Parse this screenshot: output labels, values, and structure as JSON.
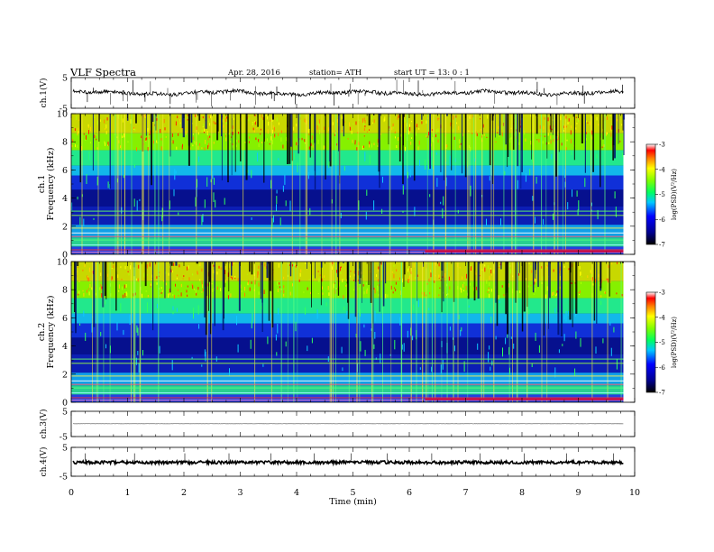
{
  "header": {
    "title": "VLF  Spectra",
    "date": "Apr. 28,  2016",
    "station": "station= ATH",
    "start": "start  UT  =    13: 0  : 1"
  },
  "chart_data": [
    {
      "type": "line",
      "panel": "ch1-waveform",
      "ylabel": "ch.1(V)",
      "ylim": [
        -5,
        5
      ],
      "yticks": [
        "5",
        "-5"
      ],
      "baseline": 0,
      "color": "#000000"
    },
    {
      "type": "heatmap",
      "panel": "ch1-spectrogram",
      "ylabel": "ch.1\nFrequency  (kHz)",
      "ylim": [
        0,
        10
      ],
      "yticks": [
        "0",
        "2",
        "4",
        "6",
        "8",
        "10"
      ],
      "xlim": [
        0,
        10
      ],
      "data_end_min": 9.8,
      "colorbar": {
        "label": "log(PSD)(V²/Hz)",
        "range": [
          -7,
          -3
        ],
        "ticks": [
          "-3",
          "-4",
          "-5",
          "-6",
          "-7"
        ]
      }
    },
    {
      "type": "heatmap",
      "panel": "ch2-spectrogram",
      "ylabel": "ch.2\nFrequency  (kHz)",
      "ylim": [
        0,
        10
      ],
      "yticks": [
        "0",
        "2",
        "4",
        "6",
        "8",
        "10"
      ],
      "xlim": [
        0,
        10
      ],
      "data_end_min": 9.8,
      "colorbar": {
        "label": "log(PSD)(V²/Hz)",
        "range": [
          -7,
          -3
        ],
        "ticks": [
          "-3",
          "-4",
          "-5",
          "-6",
          "-7"
        ]
      }
    },
    {
      "type": "line",
      "panel": "ch3-waveform",
      "ylabel": "ch.3(V)",
      "ylim": [
        -5,
        5
      ],
      "yticks": [
        "5",
        "-5"
      ],
      "baseline": 0.1,
      "color": "#808080"
    },
    {
      "type": "line",
      "panel": "ch4-waveform",
      "ylabel": "ch.4(V)",
      "ylim": [
        -5,
        5
      ],
      "yticks": [
        "5",
        "-5"
      ],
      "baseline": -0.2,
      "color": "#000000"
    }
  ],
  "xaxis": {
    "label": "Time  (min)",
    "ticks": [
      "0",
      "1",
      "2",
      "3",
      "4",
      "5",
      "6",
      "7",
      "8",
      "9",
      "10"
    ],
    "xlim": [
      0,
      10
    ]
  }
}
